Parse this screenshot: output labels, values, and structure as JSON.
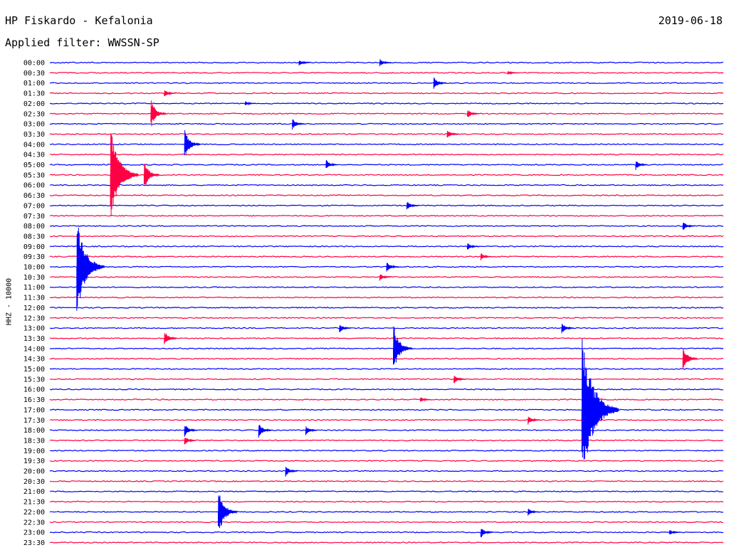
{
  "header": {
    "title": "HP Fiskardo - Kefalonia",
    "date": "2019-06-18",
    "filter": "Applied filter: WWSSN-SP"
  },
  "chart_data": {
    "type": "line",
    "title": "HP Fiskardo - Kefalonia",
    "subtitle": "Applied filter: WWSSN-SP",
    "ylabel": "HHZ - 10000",
    "xlabel": "",
    "rows": [
      "00:00",
      "00:30",
      "01:00",
      "01:30",
      "02:00",
      "02:30",
      "03:00",
      "03:30",
      "04:00",
      "04:30",
      "05:00",
      "05:30",
      "06:00",
      "06:30",
      "07:00",
      "07:30",
      "08:00",
      "08:30",
      "09:00",
      "09:30",
      "10:00",
      "10:30",
      "11:00",
      "11:30",
      "12:00",
      "12:30",
      "13:00",
      "13:30",
      "14:00",
      "14:30",
      "15:00",
      "15:30",
      "16:00",
      "16:30",
      "17:00",
      "17:30",
      "18:00",
      "18:30",
      "19:00",
      "19:30",
      "20:00",
      "20:30",
      "21:00",
      "21:30",
      "22:00",
      "22:30",
      "23:00",
      "23:30"
    ],
    "colors": {
      "even": "#0000ff",
      "odd": "#ff0044"
    },
    "legend": "none",
    "grid": false,
    "events": [
      {
        "row": "00:00",
        "t": 0.37,
        "amp": 0.35
      },
      {
        "row": "00:00",
        "t": 0.49,
        "amp": 0.4
      },
      {
        "row": "00:30",
        "t": 0.68,
        "amp": 0.2
      },
      {
        "row": "01:00",
        "t": 0.57,
        "amp": 0.7
      },
      {
        "row": "01:30",
        "t": 0.17,
        "amp": 0.4
      },
      {
        "row": "02:00",
        "t": 0.29,
        "amp": 0.25
      },
      {
        "row": "02:30",
        "t": 0.15,
        "amp": 1.5
      },
      {
        "row": "02:30",
        "t": 0.62,
        "amp": 0.5
      },
      {
        "row": "03:00",
        "t": 0.36,
        "amp": 0.6
      },
      {
        "row": "03:30",
        "t": 0.59,
        "amp": 0.5
      },
      {
        "row": "04:00",
        "t": 0.2,
        "amp": 1.6
      },
      {
        "row": "05:00",
        "t": 0.41,
        "amp": 0.55
      },
      {
        "row": "05:00",
        "t": 0.87,
        "amp": 0.55
      },
      {
        "row": "05:30",
        "t": 0.09,
        "amp": 5
      },
      {
        "row": "05:30",
        "t": 0.14,
        "amp": 1.5
      },
      {
        "row": "07:00",
        "t": 0.53,
        "amp": 0.5
      },
      {
        "row": "08:00",
        "t": 0.94,
        "amp": 0.5
      },
      {
        "row": "09:00",
        "t": 0.62,
        "amp": 0.4
      },
      {
        "row": "09:30",
        "t": 0.64,
        "amp": 0.4
      },
      {
        "row": "10:00",
        "t": 0.04,
        "amp": 5
      },
      {
        "row": "10:00",
        "t": 0.5,
        "amp": 0.6
      },
      {
        "row": "10:30",
        "t": 0.49,
        "amp": 0.4
      },
      {
        "row": "13:00",
        "t": 0.43,
        "amp": 0.5
      },
      {
        "row": "13:00",
        "t": 0.76,
        "amp": 0.6
      },
      {
        "row": "13:30",
        "t": 0.17,
        "amp": 0.8
      },
      {
        "row": "14:00",
        "t": 0.51,
        "amp": 2.5
      },
      {
        "row": "14:30",
        "t": 0.94,
        "amp": 1.3
      },
      {
        "row": "15:30",
        "t": 0.6,
        "amp": 0.5
      },
      {
        "row": "16:30",
        "t": 0.55,
        "amp": 0.3
      },
      {
        "row": "17:00",
        "t": 0.79,
        "amp": 7.5
      },
      {
        "row": "17:30",
        "t": 0.71,
        "amp": 0.5
      },
      {
        "row": "18:00",
        "t": 0.2,
        "amp": 0.7
      },
      {
        "row": "18:00",
        "t": 0.31,
        "amp": 0.8
      },
      {
        "row": "18:00",
        "t": 0.38,
        "amp": 0.5
      },
      {
        "row": "18:30",
        "t": 0.2,
        "amp": 0.5
      },
      {
        "row": "20:00",
        "t": 0.35,
        "amp": 0.6
      },
      {
        "row": "22:00",
        "t": 0.25,
        "amp": 2.5
      },
      {
        "row": "22:00",
        "t": 0.71,
        "amp": 0.4
      },
      {
        "row": "23:00",
        "t": 0.64,
        "amp": 0.6
      },
      {
        "row": "23:00",
        "t": 0.92,
        "amp": 0.3
      }
    ]
  }
}
